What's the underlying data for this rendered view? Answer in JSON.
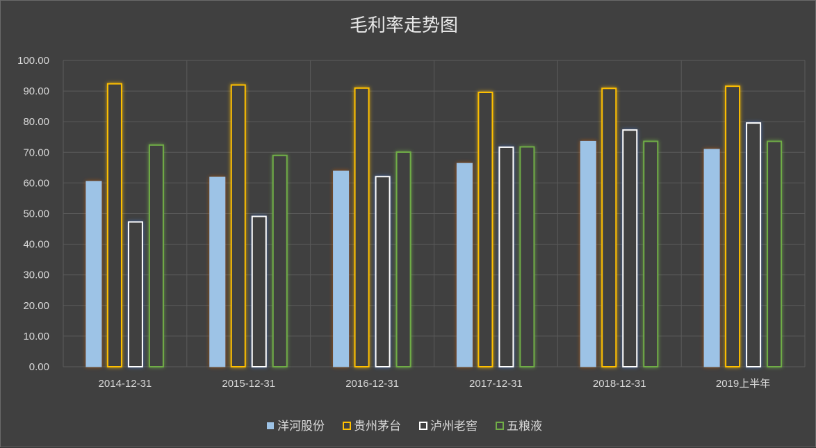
{
  "chart_data": {
    "type": "bar",
    "title": "毛利率走势图",
    "categories": [
      "2014-12-31",
      "2015-12-31",
      "2016-12-31",
      "2017-12-31",
      "2018-12-31",
      "2019上半年"
    ],
    "ylim": [
      0,
      100
    ],
    "yticks": [
      "0.00",
      "10.00",
      "20.00",
      "30.00",
      "40.00",
      "50.00",
      "60.00",
      "70.00",
      "80.00",
      "90.00",
      "100.00"
    ],
    "grid": true,
    "legend_position": "bottom",
    "series": [
      {
        "name": "洋河股份",
        "values": [
          60.5,
          61.9,
          63.9,
          66.4,
          73.6,
          71.0
        ],
        "style": "filled",
        "color": "#9dc3e6",
        "glow": "#c55a11"
      },
      {
        "name": "贵州茅台",
        "values": [
          92.6,
          92.2,
          91.2,
          89.8,
          91.1,
          91.8
        ],
        "style": "outline",
        "color": "#ffc000",
        "glow": "#ffc000"
      },
      {
        "name": "泸州老窖",
        "values": [
          47.5,
          49.3,
          62.3,
          71.9,
          77.5,
          79.8
        ],
        "style": "outline",
        "color": "#ffffff",
        "glow": "#4472c4"
      },
      {
        "name": "五粮液",
        "values": [
          72.6,
          69.2,
          70.3,
          72.0,
          73.8,
          73.8
        ],
        "style": "outline",
        "color": "#70ad47",
        "glow": "#70ad47"
      }
    ]
  }
}
